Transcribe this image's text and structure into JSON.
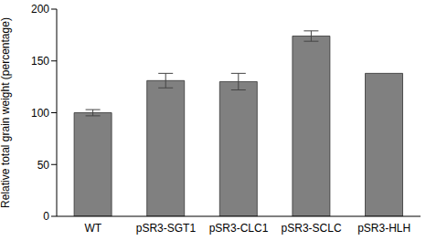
{
  "chart_data": {
    "type": "bar",
    "categories": [
      "WT",
      "pSR3-SGT1",
      "pSR3-CLC1",
      "pSR3-SCLC",
      "pSR3-HLH"
    ],
    "values": [
      100,
      131,
      130,
      174,
      138
    ],
    "errors": [
      3,
      7,
      8,
      5,
      0
    ],
    "color": "#808080",
    "y_label": "Relative total grain weight (percentage)",
    "ylim": [
      0,
      200
    ],
    "yticks": [
      0,
      50,
      100,
      150,
      200
    ],
    "grid": false
  }
}
